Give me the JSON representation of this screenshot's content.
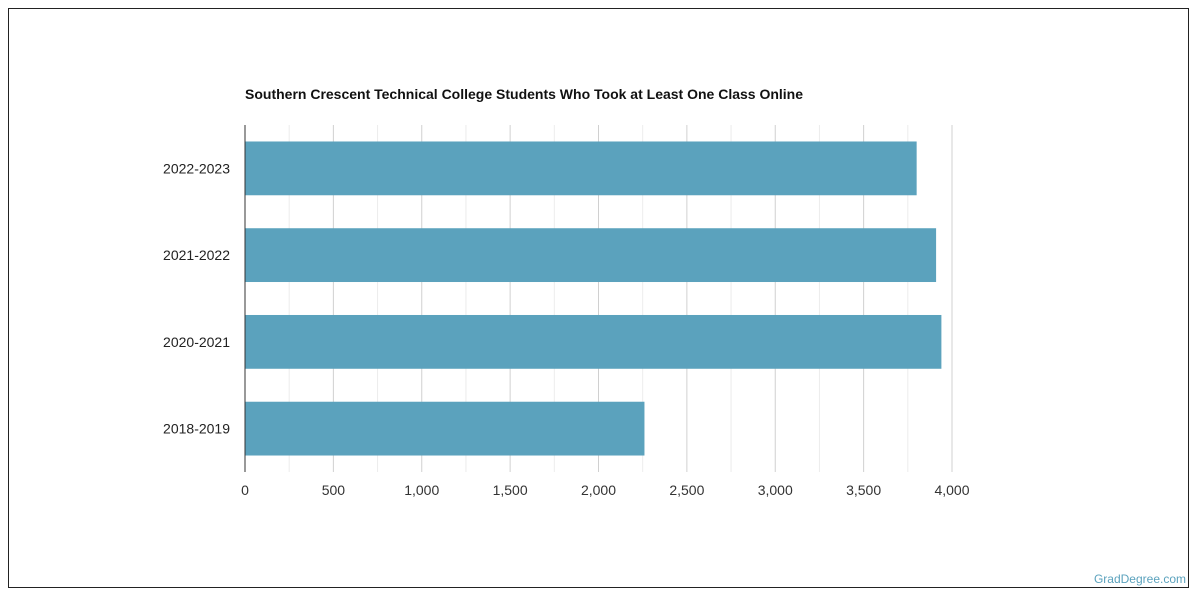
{
  "chart_data": {
    "type": "bar",
    "orientation": "horizontal",
    "title": "Southern Crescent Technical College Students Who Took at Least One Class Online",
    "categories": [
      "2022-2023",
      "2021-2022",
      "2020-2021",
      "2018-2019"
    ],
    "values": [
      3800,
      3910,
      3940,
      2260
    ],
    "xlabel": "",
    "ylabel": "",
    "xlim": [
      0,
      4000
    ],
    "xticks": [
      0,
      500,
      1000,
      1500,
      2000,
      2500,
      3000,
      3500,
      4000
    ],
    "xtick_labels": [
      "0",
      "500",
      "1,000",
      "1,500",
      "2,000",
      "2,500",
      "3,000",
      "3,500",
      "4,000"
    ],
    "grid": true,
    "legend": "none",
    "bar_color": "#5ba2bd"
  },
  "source": "GradDegree.com"
}
